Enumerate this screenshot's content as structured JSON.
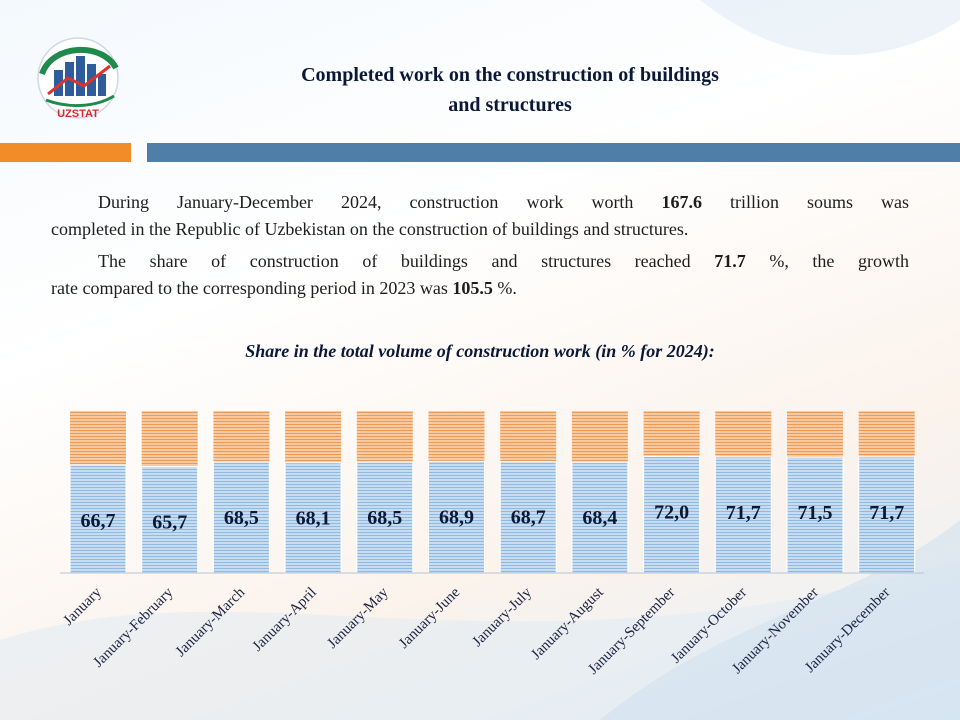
{
  "header": {
    "logo_text": "UZSTAT",
    "title_line1": "Completed work on the construction of buildings",
    "title_line2": "and structures"
  },
  "body": {
    "p1_a": "During January-December 2024, construction work worth ",
    "p1_b": "167.6",
    "p1_c": " trillion soums was",
    "p1_d": "completed in the Republic of Uzbekistan on the construction of buildings and structures.",
    "p2_a": "The share of construction of buildings and structures reached ",
    "p2_b": "71.7",
    "p2_c": " %, the growth",
    "p2_d": "rate compared to the corresponding period in 2023 was ",
    "p2_e": "105.5",
    "p2_f": " %."
  },
  "chart_data": {
    "type": "bar",
    "stacked": true,
    "title": "Share in the total volume of construction work (in % for 2024):",
    "categories": [
      "January",
      "January-February",
      "January-March",
      "January-April",
      "January-May",
      "January-June",
      "January-July",
      "January-August",
      "January-September",
      "January-October",
      "January-November",
      "January-December"
    ],
    "values": [
      66.7,
      65.7,
      68.5,
      68.1,
      68.5,
      68.9,
      68.7,
      68.4,
      72.0,
      71.7,
      71.5,
      71.7
    ],
    "labels": [
      "66,7",
      "65,7",
      "68,5",
      "68,1",
      "68,5",
      "68,9",
      "68,7",
      "68,4",
      "72,0",
      "71,7",
      "71,5",
      "71,7"
    ],
    "ylim": [
      0,
      100
    ],
    "colors": {
      "share": "#a9c7e6",
      "rest": "#f3a66a"
    }
  }
}
